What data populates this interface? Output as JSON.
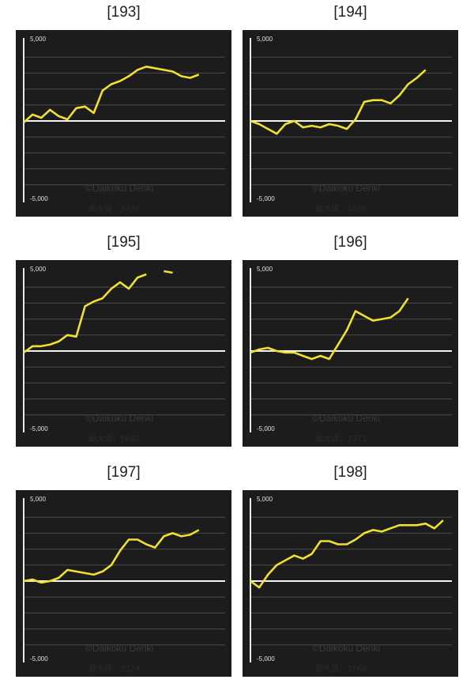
{
  "chart_data": [
    {
      "type": "line",
      "title": "[193]",
      "ylim": [
        -5000,
        5000
      ],
      "yticks": [
        {
          "value": 5000,
          "label": "5,000"
        },
        {
          "value": -5000,
          "label": "-5,000"
        }
      ],
      "grid_step": 1000,
      "watermark": "©Daikoku Denki",
      "max_label": "最大値：3436",
      "series": [
        {
          "color": "#f0e030",
          "values": [
            -100,
            400,
            200,
            700,
            300,
            100,
            800,
            900,
            500,
            1900,
            2300,
            2500,
            2800,
            3200,
            3400,
            3300,
            3200,
            3100,
            2800,
            2700,
            2900,
            null,
            null,
            null
          ]
        }
      ]
    },
    {
      "type": "line",
      "title": "[194]",
      "ylim": [
        -5000,
        5000
      ],
      "yticks": [
        {
          "value": 5000,
          "label": "5,000"
        },
        {
          "value": -5000,
          "label": "-5,000"
        }
      ],
      "grid_step": 1000,
      "watermark": "©Daikoku Denki",
      "max_label": "最大値：3289",
      "series": [
        {
          "color": "#f0e030",
          "values": [
            0,
            -200,
            -500,
            -800,
            -200,
            0,
            -400,
            -300,
            -400,
            -200,
            -300,
            -500,
            100,
            1200,
            1300,
            1300,
            1100,
            1600,
            2300,
            2700,
            3200,
            null,
            null,
            null
          ]
        }
      ]
    },
    {
      "type": "line",
      "title": "[195]",
      "ylim": [
        -5000,
        5000
      ],
      "yticks": [
        {
          "value": 5000,
          "label": "5,000"
        },
        {
          "value": -5000,
          "label": "-5,000"
        }
      ],
      "grid_step": 1000,
      "watermark": "©Daikoku Denki",
      "max_label": "最大値：5662",
      "series": [
        {
          "color": "#f0e030",
          "values": [
            -100,
            300,
            300,
            400,
            600,
            1000,
            900,
            2800,
            3100,
            3300,
            3900,
            4300,
            3900,
            4600,
            4800,
            null,
            5000,
            4900,
            null,
            null,
            null,
            null,
            null,
            null
          ]
        }
      ]
    },
    {
      "type": "line",
      "title": "[196]",
      "ylim": [
        -5000,
        5000
      ],
      "yticks": [
        {
          "value": 5000,
          "label": "5,000"
        },
        {
          "value": -5000,
          "label": "-5,000"
        }
      ],
      "grid_step": 1000,
      "watermark": "©Daikoku Denki",
      "max_label": "最大値：3371",
      "series": [
        {
          "color": "#f0e030",
          "values": [
            -100,
            100,
            200,
            0,
            -100,
            -100,
            -300,
            -500,
            -300,
            -500,
            400,
            1300,
            2500,
            2200,
            1900,
            2000,
            2100,
            2500,
            3300,
            null,
            null,
            null,
            null,
            null
          ]
        }
      ]
    },
    {
      "type": "line",
      "title": "[197]",
      "ylim": [
        -5000,
        5000
      ],
      "yticks": [
        {
          "value": 5000,
          "label": "5,000"
        },
        {
          "value": -5000,
          "label": "-5,000"
        }
      ],
      "grid_step": 1000,
      "watermark": "©Daikoku Denki",
      "max_label": "最大値：3324",
      "series": [
        {
          "color": "#f0e030",
          "values": [
            0,
            100,
            -100,
            0,
            200,
            700,
            600,
            500,
            400,
            600,
            1000,
            1900,
            2600,
            2600,
            2300,
            2100,
            2800,
            3000,
            2800,
            2900,
            3200,
            null,
            null,
            null
          ]
        }
      ]
    },
    {
      "type": "line",
      "title": "[198]",
      "ylim": [
        -5000,
        5000
      ],
      "yticks": [
        {
          "value": 5000,
          "label": "5,000"
        },
        {
          "value": -5000,
          "label": "-5,000"
        }
      ],
      "grid_step": 1000,
      "watermark": "©Daikoku Denki",
      "max_label": "最大値：3768",
      "series": [
        {
          "color": "#f0e030",
          "values": [
            0,
            -400,
            400,
            1000,
            1300,
            1600,
            1400,
            1700,
            2500,
            2500,
            2300,
            2300,
            2600,
            3000,
            3200,
            3100,
            3300,
            3500,
            3500,
            3500,
            3600,
            3300,
            3800,
            null
          ]
        }
      ]
    }
  ]
}
